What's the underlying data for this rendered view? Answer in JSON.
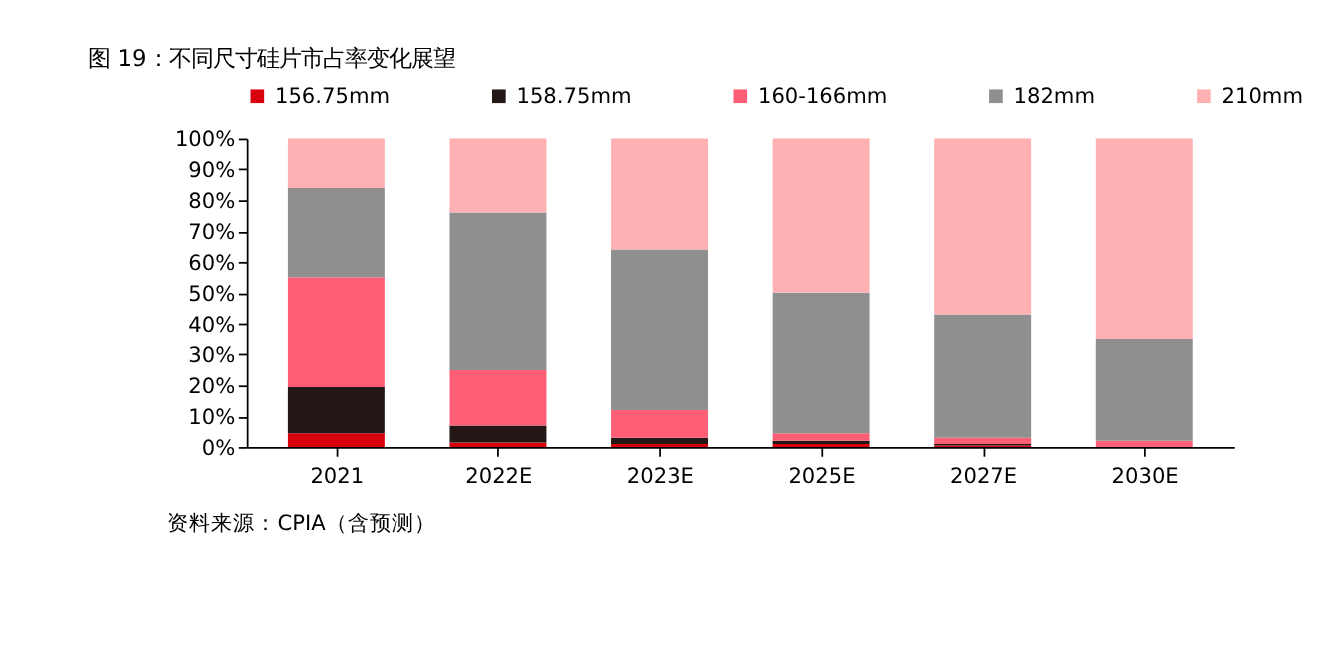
{
  "chart_data": {
    "type": "bar",
    "stacked": true,
    "title": "图 19：不同尺寸硅片市占率变化展望",
    "categories": [
      "2021",
      "2022E",
      "2023E",
      "2025E",
      "2027E",
      "2030E"
    ],
    "series": [
      {
        "name": "156.75mm",
        "color": "#d9000d",
        "values": [
          4.5,
          1.5,
          1,
          1,
          0.5,
          0
        ]
      },
      {
        "name": "158.75mm",
        "color": "#231815",
        "values": [
          15,
          5.5,
          2,
          1,
          0.5,
          0
        ]
      },
      {
        "name": "160-166mm",
        "color": "#fe5f76",
        "values": [
          35.5,
          18,
          9,
          2.5,
          2,
          2
        ]
      },
      {
        "name": "182mm",
        "color": "#8f8f8f",
        "values": [
          29,
          51,
          52,
          45.5,
          40,
          33
        ]
      },
      {
        "name": "210mm",
        "color": "#ffb0b2",
        "values": [
          16,
          24,
          36,
          50,
          57,
          65
        ]
      }
    ],
    "ylim": [
      0,
      100
    ],
    "yticks": [
      {
        "value": 0,
        "label": "0%"
      },
      {
        "value": 10,
        "label": "10%"
      },
      {
        "value": 20,
        "label": "20%"
      },
      {
        "value": 30,
        "label": "30%"
      },
      {
        "value": 40,
        "label": "40%"
      },
      {
        "value": 50,
        "label": "50%"
      },
      {
        "value": 60,
        "label": "60%"
      },
      {
        "value": 70,
        "label": "70%"
      },
      {
        "value": 80,
        "label": "80%"
      },
      {
        "value": 90,
        "label": "90%"
      },
      {
        "value": 100,
        "label": "100%"
      }
    ],
    "grid": false,
    "legend": "top",
    "annotations": [
      "资料来源：CPIA（含预测）"
    ]
  }
}
